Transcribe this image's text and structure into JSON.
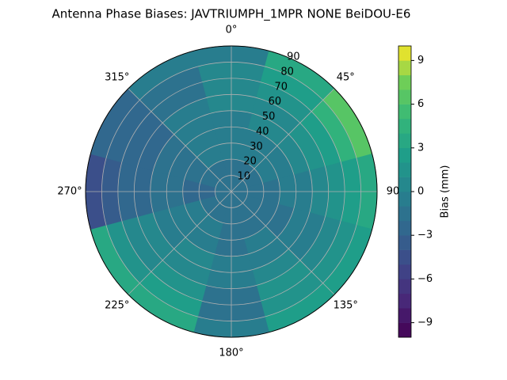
{
  "chart_data": {
    "type": "polar_contour",
    "title": "Antenna Phase Biases: JAVTRIUMPH_1MPR NONE BeiDOU-E6",
    "colorbar_label": "Bias (mm)",
    "colormap": "viridis",
    "grid": true,
    "rlim": [
      0,
      90
    ],
    "rticks": [
      10,
      20,
      30,
      40,
      50,
      60,
      70,
      80,
      90
    ],
    "thetaticks": [
      {
        "value": 0,
        "label": "0°"
      },
      {
        "value": 45,
        "label": "45°"
      },
      {
        "value": 90,
        "label": "90"
      },
      {
        "value": 135,
        "label": "135°"
      },
      {
        "value": 180,
        "label": "180°"
      },
      {
        "value": 225,
        "label": "225°"
      },
      {
        "value": 270,
        "label": "270°"
      },
      {
        "value": 315,
        "label": "315°"
      }
    ],
    "clim": [
      -10,
      10
    ],
    "cticks": [
      {
        "value": -9,
        "label": "−9"
      },
      {
        "value": -6,
        "label": "−6"
      },
      {
        "value": -3,
        "label": "−3"
      },
      0,
      3,
      6,
      9
    ],
    "levels": [
      -10,
      -9,
      -8,
      -7,
      -6,
      -5,
      -4,
      -3,
      -2,
      -1,
      0,
      1,
      2,
      3,
      4,
      5,
      6,
      7,
      8,
      9,
      10
    ],
    "field": {
      "azimuth": [
        0,
        30,
        60,
        90,
        120,
        150,
        180,
        210,
        240,
        270,
        300,
        330
      ],
      "zenith": [
        5,
        15,
        25,
        35,
        45,
        55,
        65,
        75,
        85
      ],
      "values": [
        [
          -2,
          -2,
          -1,
          -1,
          -1,
          0,
          0,
          0,
          -1
        ],
        [
          -2,
          -2,
          -1,
          -1,
          0,
          0,
          1,
          2,
          3
        ],
        [
          -2,
          -2,
          -1,
          -1,
          0,
          1,
          2,
          4,
          6
        ],
        [
          -2,
          -2,
          -2,
          -1,
          -1,
          0,
          1,
          2,
          3
        ],
        [
          -2,
          -2,
          -2,
          -2,
          -1,
          -1,
          0,
          1,
          2
        ],
        [
          -2,
          -2,
          -2,
          -1,
          -1,
          0,
          1,
          1,
          2
        ],
        [
          -2,
          -2,
          -2,
          -2,
          -1,
          -1,
          -2,
          -2,
          -1
        ],
        [
          -2,
          -2,
          -1,
          -1,
          0,
          0,
          1,
          2,
          3
        ],
        [
          -2,
          -2,
          -1,
          -1,
          -1,
          0,
          0,
          1,
          3
        ],
        [
          -2,
          -3,
          -3,
          -2,
          -2,
          -3,
          -3,
          -4,
          -5
        ],
        [
          -2,
          -2,
          -2,
          -2,
          -2,
          -3,
          -3,
          -3,
          -3
        ],
        [
          -2,
          -2,
          -1,
          -1,
          -1,
          -1,
          -2,
          -2,
          -1
        ]
      ]
    }
  }
}
